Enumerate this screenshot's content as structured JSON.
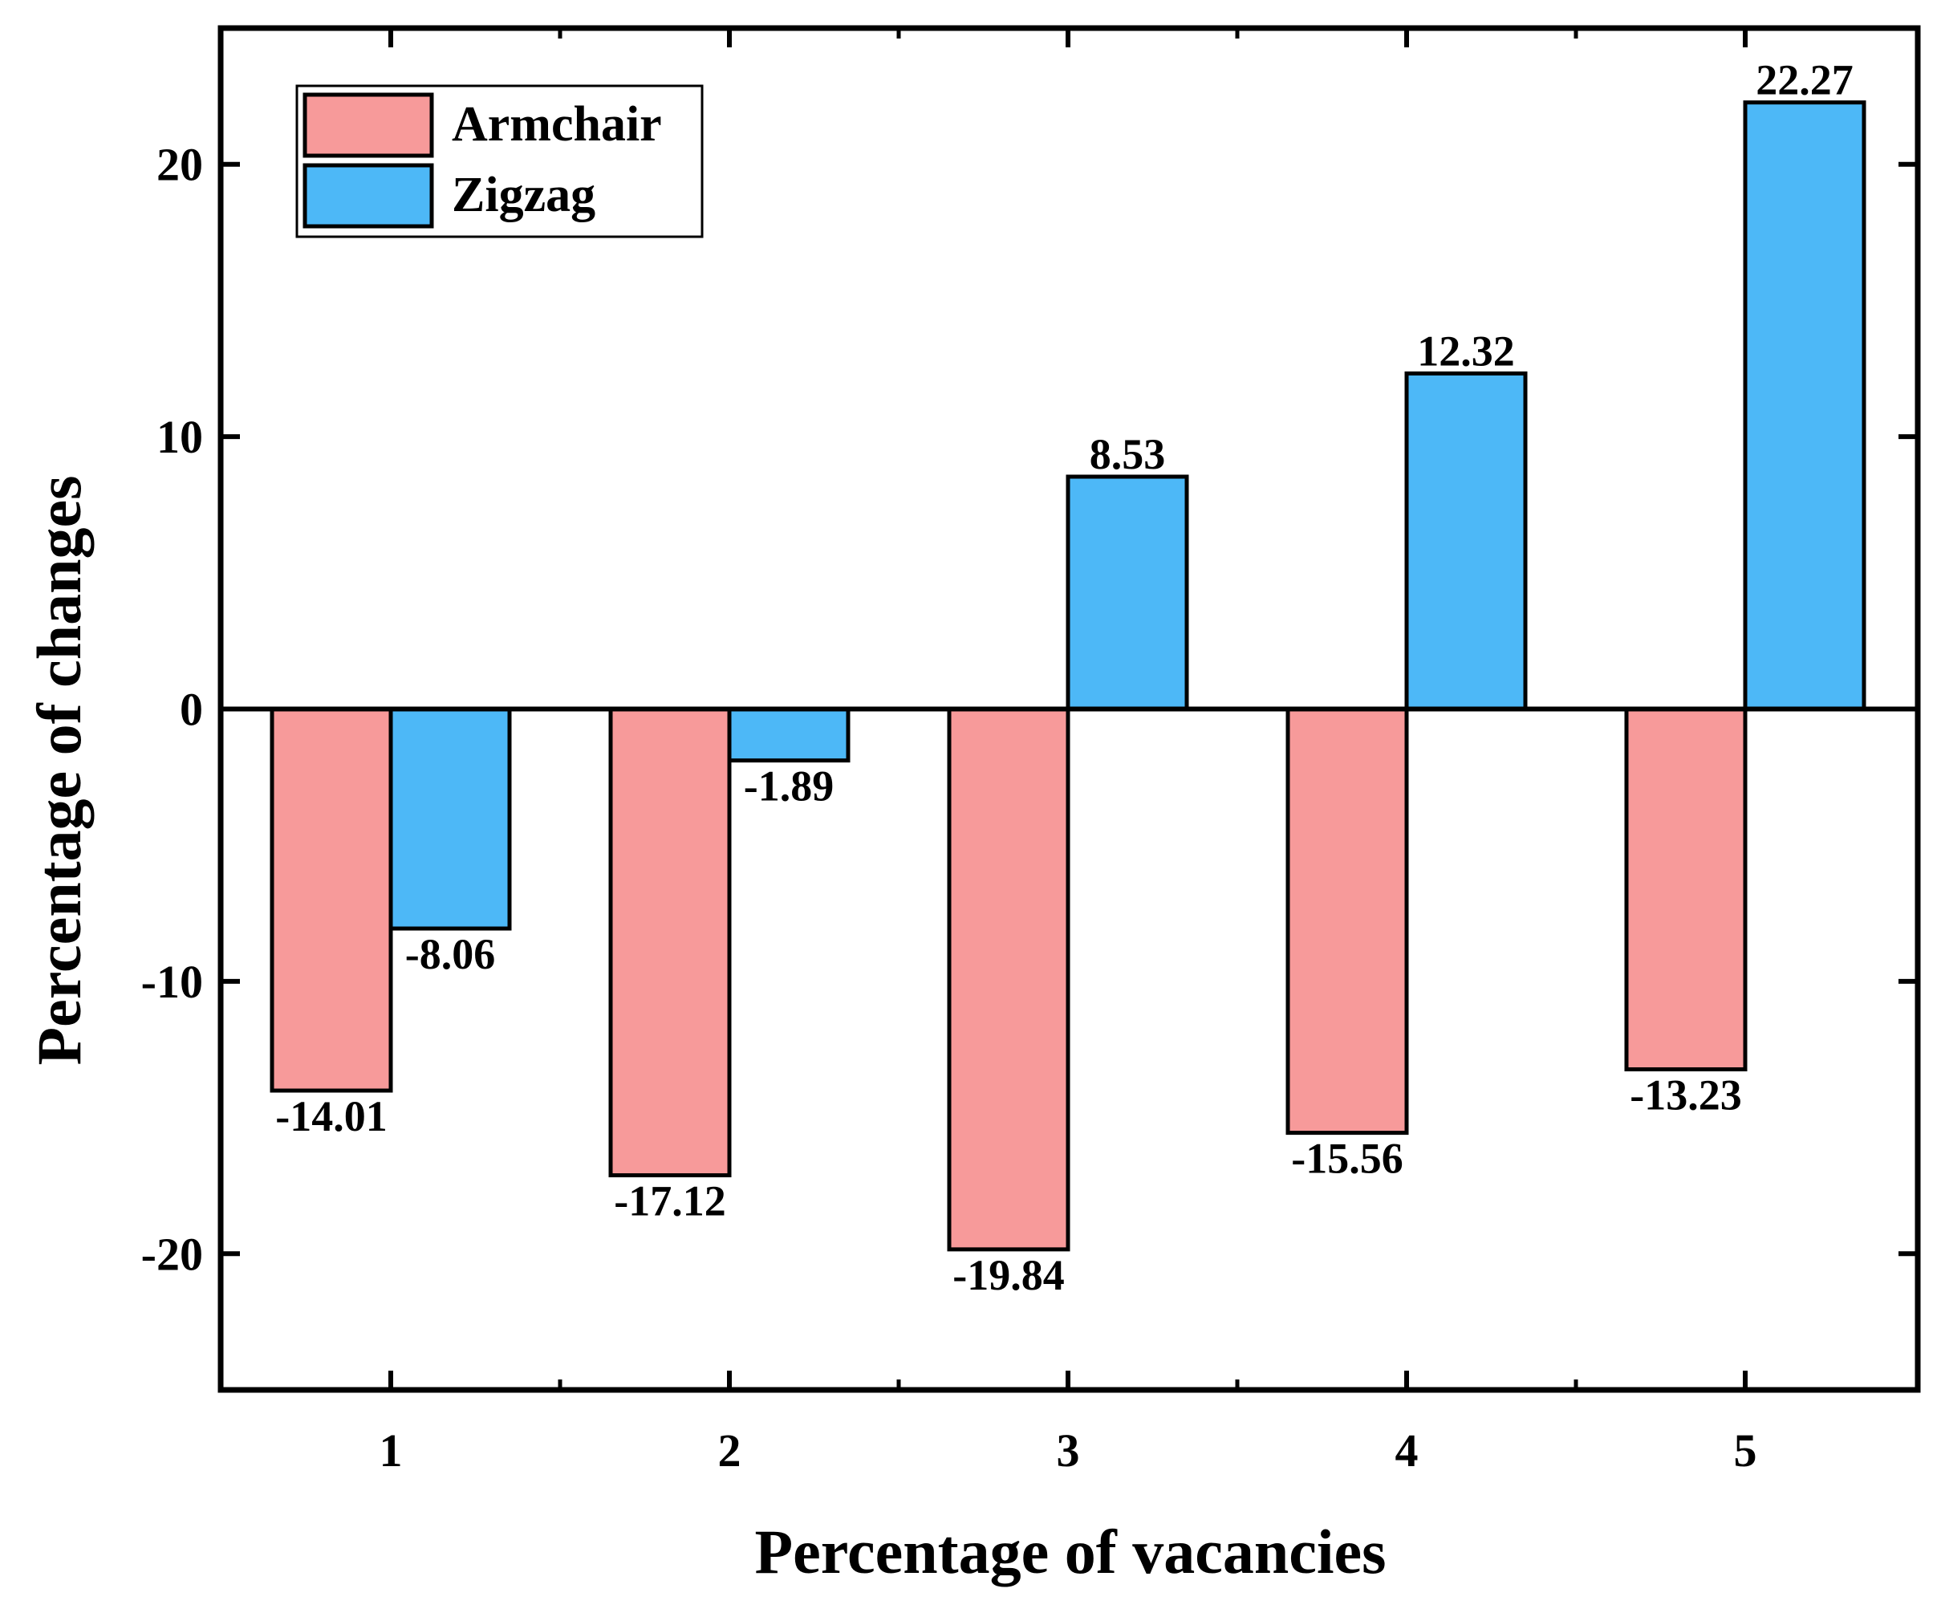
{
  "chart_data": {
    "type": "bar",
    "title": "",
    "xlabel": "Percentage of vacancies",
    "ylabel": "Percentage of changes",
    "categories": [
      "1",
      "2",
      "3",
      "4",
      "5"
    ],
    "ylim": [
      -25,
      25
    ],
    "yticks": [
      -20,
      -10,
      0,
      10,
      20
    ],
    "ytick_labels": [
      "-20",
      "-10",
      "0",
      "10",
      "20"
    ],
    "grid": false,
    "legend_position": "top-left",
    "series": [
      {
        "name": "Armchair",
        "color": "#f79a9a",
        "values": [
          -14.01,
          -17.12,
          -19.84,
          -15.56,
          -13.23
        ],
        "labels": [
          "-14.01",
          "-17.12",
          "-19.84",
          "-15.56",
          "-13.23"
        ]
      },
      {
        "name": "Zigzag",
        "color": "#4db8f7",
        "values": [
          -8.06,
          -1.89,
          8.53,
          12.32,
          22.27
        ],
        "labels": [
          "-8.06",
          "-1.89",
          "8.53",
          "12.32",
          "22.27"
        ]
      }
    ]
  }
}
